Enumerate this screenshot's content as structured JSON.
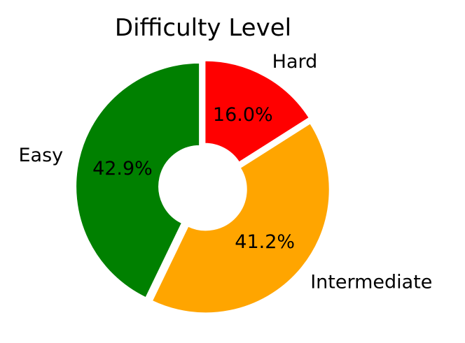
{
  "chart_data": {
    "type": "pie",
    "title": "Difficulty Level",
    "donut": true,
    "slices": [
      {
        "label": "Hard",
        "value": 16.0,
        "pct_label": "16.0%",
        "color": "#ff0000"
      },
      {
        "label": "Intermediate",
        "value": 41.2,
        "pct_label": "41.2%",
        "color": "#ffa500"
      },
      {
        "label": "Easy",
        "value": 42.9,
        "pct_label": "42.9%",
        "color": "#008000"
      }
    ],
    "start_angle_deg": 90,
    "direction": "clockwise",
    "exploded": true,
    "legend": "none"
  }
}
